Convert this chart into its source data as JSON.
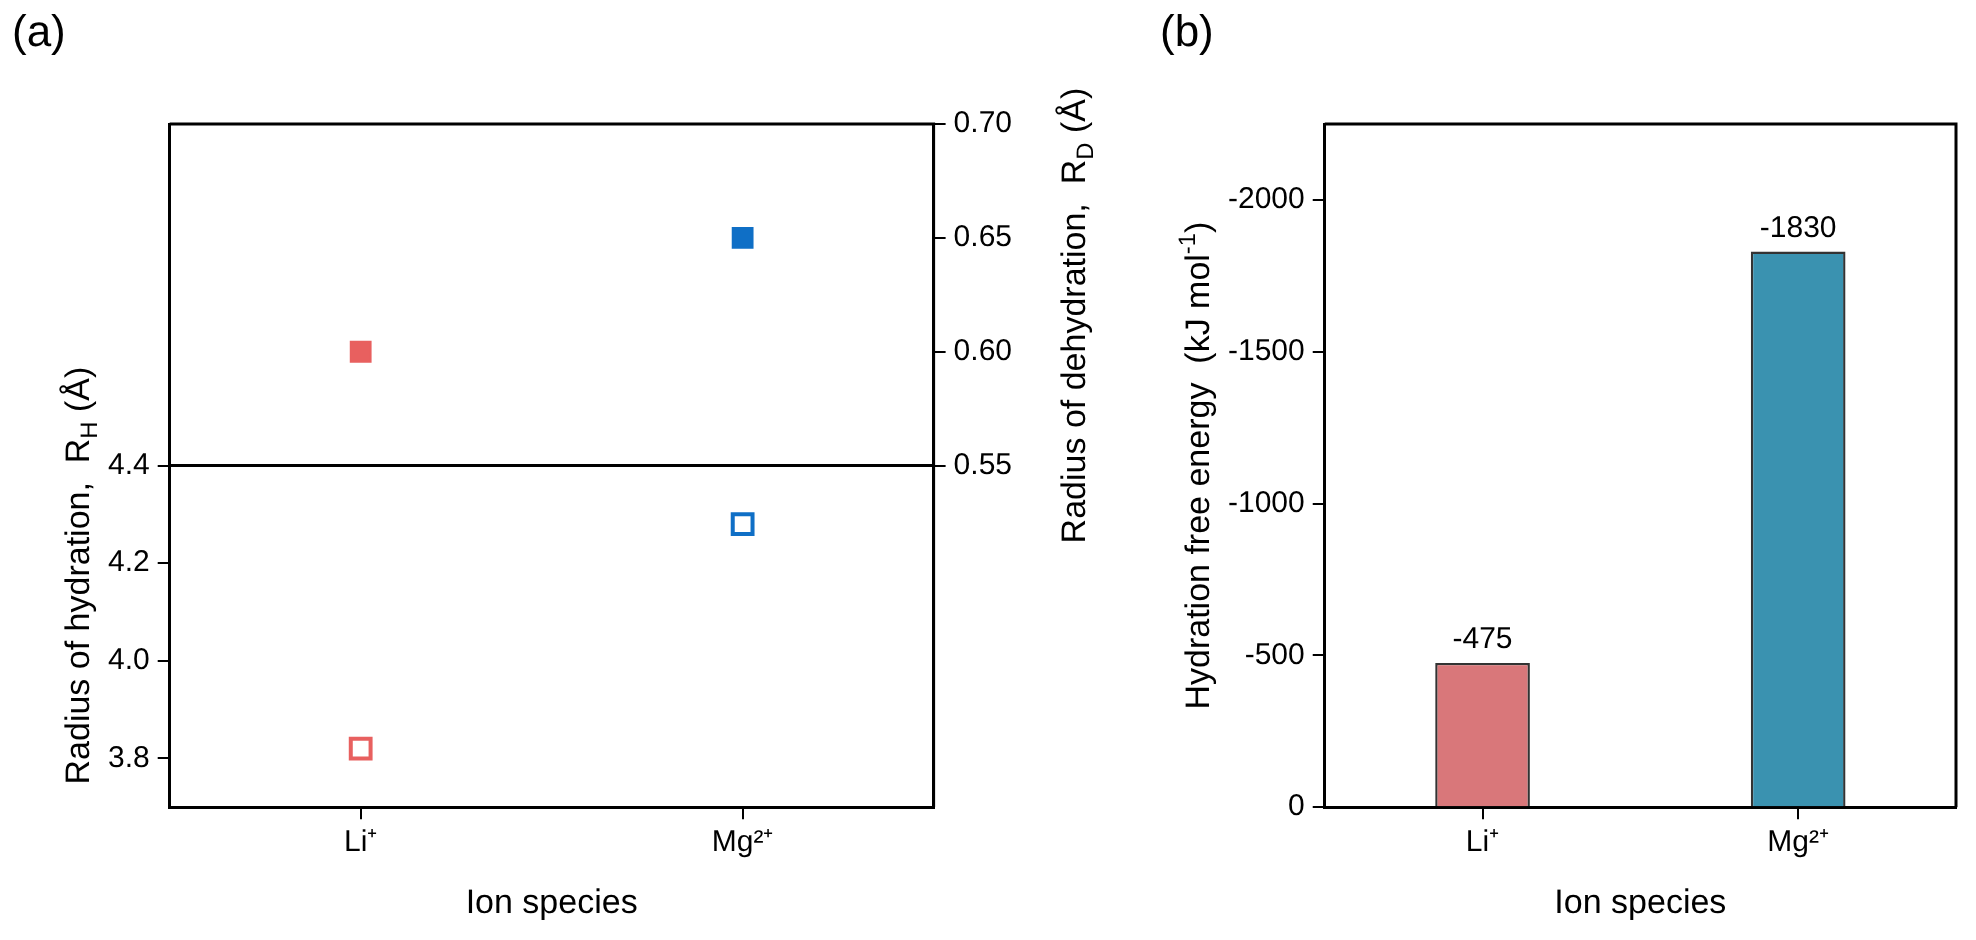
{
  "chart_data": [
    {
      "type": "scatter",
      "title": "(a)",
      "categories": [
        "Li⁺",
        "Mg²⁺"
      ],
      "xlabel": "Ion species",
      "ylabel": "Radius of hydration,  R$_{H}$ (Å)",
      "y2label": "Radius of dehydration,  R$_{D}$ (Å)",
      "marker": "square",
      "series": [
        {
          "colors": [
            "#e8605f",
            "#0f6fc6"
          ],
          "values": [
            3.82,
            4.28
          ]
        },
        {
          "colors": [
            "#e8605f",
            "#0f6fc6"
          ],
          "values": [
            0.6,
            0.65
          ],
          "axis": "y2"
        }
      ],
      "ylim": [
        3.7,
        5.1
      ],
      "yticks": [
        3.8,
        {
          "value": 4,
          "label": "4.0"
        },
        4.2,
        4.4
      ],
      "y2lim": [
        0.4,
        0.7
      ],
      "y2ticks": [
        0.55,
        {
          "value": 0.6,
          "label": "0.60"
        },
        0.65,
        {
          "value": 0.7,
          "label": "0.70"
        }
      ],
      "ref_lines": [
        {
          "axis": "y",
          "value": 4.4,
          "color": "#000000"
        }
      ],
      "grid": false,
      "legend": false
    },
    {
      "type": "bar",
      "title": "(b)",
      "categories": [
        "Li⁺",
        "Mg²⁺"
      ],
      "xlabel": "Ion species",
      "ylabel": "Hydration free energy  (kJ mol$^{-1}$)",
      "values": [
        -475,
        -1830
      ],
      "colors": [
        "#d9777a",
        "#3a92b0"
      ],
      "data_labels": true,
      "ylim": [
        0,
        -2250
      ],
      "yticks": [
        0,
        -500,
        -1000,
        -1500,
        -2000
      ],
      "grid": false,
      "legend": false
    }
  ]
}
